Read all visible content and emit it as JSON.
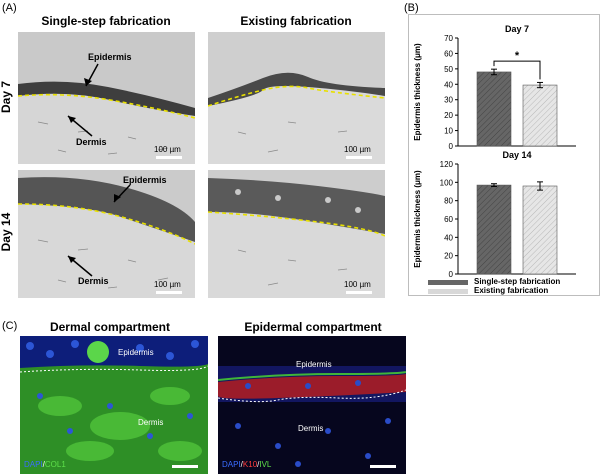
{
  "panel_a": {
    "label": "(A)",
    "col_titles": [
      "Single-step fabrication",
      "Existing fabrication"
    ],
    "row_labels": [
      "Day 7",
      "Day 14"
    ],
    "annotations": {
      "epidermis": "Epidermis",
      "dermis": "Dermis"
    },
    "scale_bar": "100 µm"
  },
  "panel_b": {
    "label": "(B)",
    "legend": [
      "Single-step fabrication",
      "Existing fabrication"
    ]
  },
  "panel_c": {
    "label": "(C)",
    "titles": [
      "Dermal compartment",
      "Epidermal compartment"
    ],
    "left": {
      "epidermis": "Epidermis",
      "dermis": "Dermis",
      "stain_dapi": "DAPI",
      "stain_sep": "/",
      "stain_col": "COL1"
    },
    "right": {
      "epidermis": "Epidermis",
      "dermis": "Dermis",
      "stain_dapi": "DAPI",
      "stain_sep1": "/",
      "stain_k10": "K10",
      "stain_sep2": "/",
      "stain_ivl": "IVL"
    }
  },
  "chart_data": [
    {
      "type": "bar",
      "title": "Day 7",
      "categories": [
        "Single-step fabrication",
        "Existing fabrication"
      ],
      "values": [
        48,
        39.5
      ],
      "errors": [
        1.8,
        1.7
      ],
      "ylabel": "Epidermis thickness (μm)",
      "ylim": [
        0,
        70
      ],
      "yticks": [
        0,
        10,
        20,
        30,
        40,
        50,
        60,
        70
      ],
      "significance": "*"
    },
    {
      "type": "bar",
      "title": "Day 14",
      "categories": [
        "Single-step fabrication",
        "Existing fabrication"
      ],
      "values": [
        97,
        96
      ],
      "errors": [
        1.5,
        4.5
      ],
      "ylabel": "Epidermis thickness (μm)",
      "ylim": [
        0,
        120
      ],
      "yticks": [
        0,
        20,
        40,
        60,
        80,
        100,
        120
      ]
    }
  ]
}
